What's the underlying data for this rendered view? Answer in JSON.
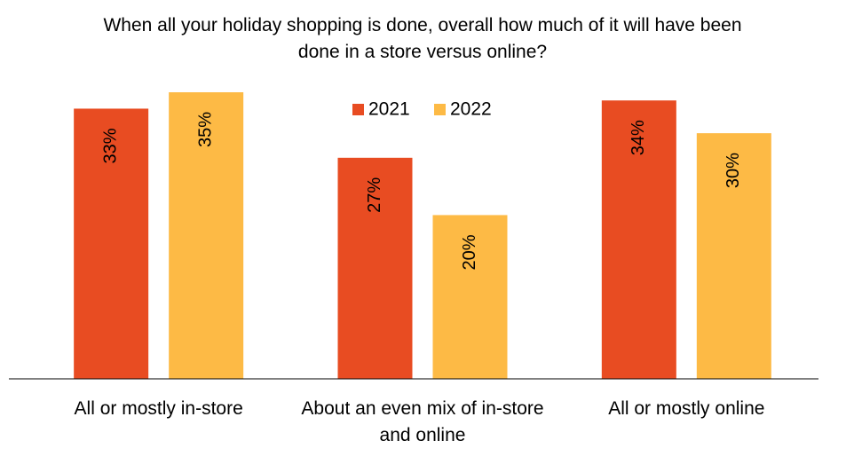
{
  "chart_data": {
    "type": "bar",
    "title": "When all your holiday shopping is done, overall how much of it will have been done in a store versus online?",
    "categories": [
      "All or mostly in-store",
      "About an even mix of in-store and online",
      "All or mostly online"
    ],
    "series": [
      {
        "name": "2021",
        "color": "#e84c22",
        "values": [
          33,
          27,
          34
        ],
        "value_labels": [
          "33%",
          "27%",
          "34%"
        ]
      },
      {
        "name": "2022",
        "color": "#fdba45",
        "values": [
          35,
          20,
          30
        ],
        "value_labels": [
          "35%",
          "20%",
          "30%"
        ]
      }
    ],
    "ylim": [
      0,
      35
    ],
    "legend": "top"
  }
}
